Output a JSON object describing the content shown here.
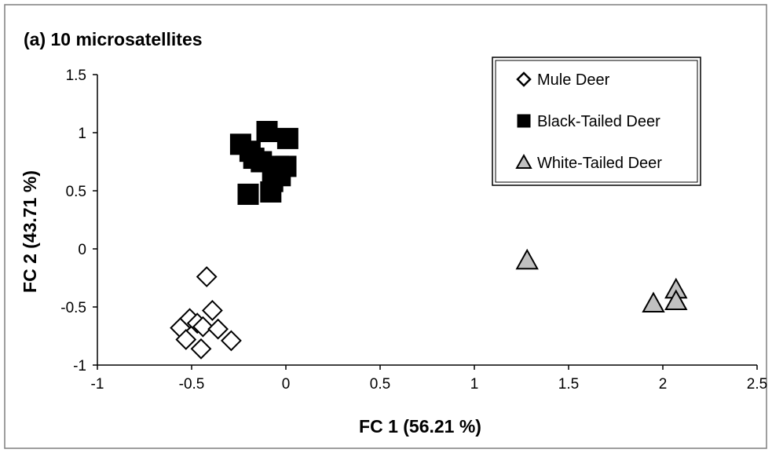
{
  "chart_data": {
    "type": "scatter",
    "title": "(a) 10 microsatellites",
    "xlabel": "FC 1 (56.21 %)",
    "ylabel": "FC 2 (43.71 %)",
    "xlim": [
      -1,
      2.5
    ],
    "ylim": [
      -1,
      1.5
    ],
    "x_ticks": [
      "-1",
      "-0.5",
      "0",
      "0.5",
      "1",
      "1.5",
      "2",
      "2.5"
    ],
    "y_ticks": [
      "1.5",
      "1",
      "0.5",
      "0",
      "-0.5",
      "-1"
    ],
    "grid": false,
    "legend_position": "top-right",
    "series": [
      {
        "name": "Mule Deer",
        "marker": "diamond",
        "fill": "#ffffff",
        "stroke": "#000000",
        "points": [
          [
            -0.42,
            -0.24
          ],
          [
            -0.39,
            -0.53
          ],
          [
            -0.51,
            -0.6
          ],
          [
            -0.56,
            -0.68
          ],
          [
            -0.47,
            -0.64
          ],
          [
            -0.44,
            -0.67
          ],
          [
            -0.36,
            -0.69
          ],
          [
            -0.29,
            -0.79
          ],
          [
            -0.53,
            -0.78
          ],
          [
            -0.45,
            -0.86
          ]
        ]
      },
      {
        "name": "Black-Tailed Deer",
        "marker": "square",
        "fill": "#000000",
        "stroke": "#000000",
        "points": [
          [
            -0.1,
            1.01
          ],
          [
            0.01,
            0.95
          ],
          [
            -0.24,
            0.9
          ],
          [
            -0.19,
            0.84
          ],
          [
            -0.17,
            0.78
          ],
          [
            -0.13,
            0.75
          ],
          [
            -0.04,
            0.71
          ],
          [
            0.0,
            0.71
          ],
          [
            -0.03,
            0.63
          ],
          [
            -0.07,
            0.58
          ],
          [
            -0.2,
            0.47
          ],
          [
            -0.08,
            0.49
          ]
        ]
      },
      {
        "name": "White-Tailed Deer",
        "marker": "triangle",
        "fill": "#c0c0c0",
        "stroke": "#000000",
        "points": [
          [
            1.28,
            -0.1
          ],
          [
            2.07,
            -0.35
          ],
          [
            1.95,
            -0.47
          ],
          [
            2.07,
            -0.45
          ]
        ]
      }
    ]
  }
}
